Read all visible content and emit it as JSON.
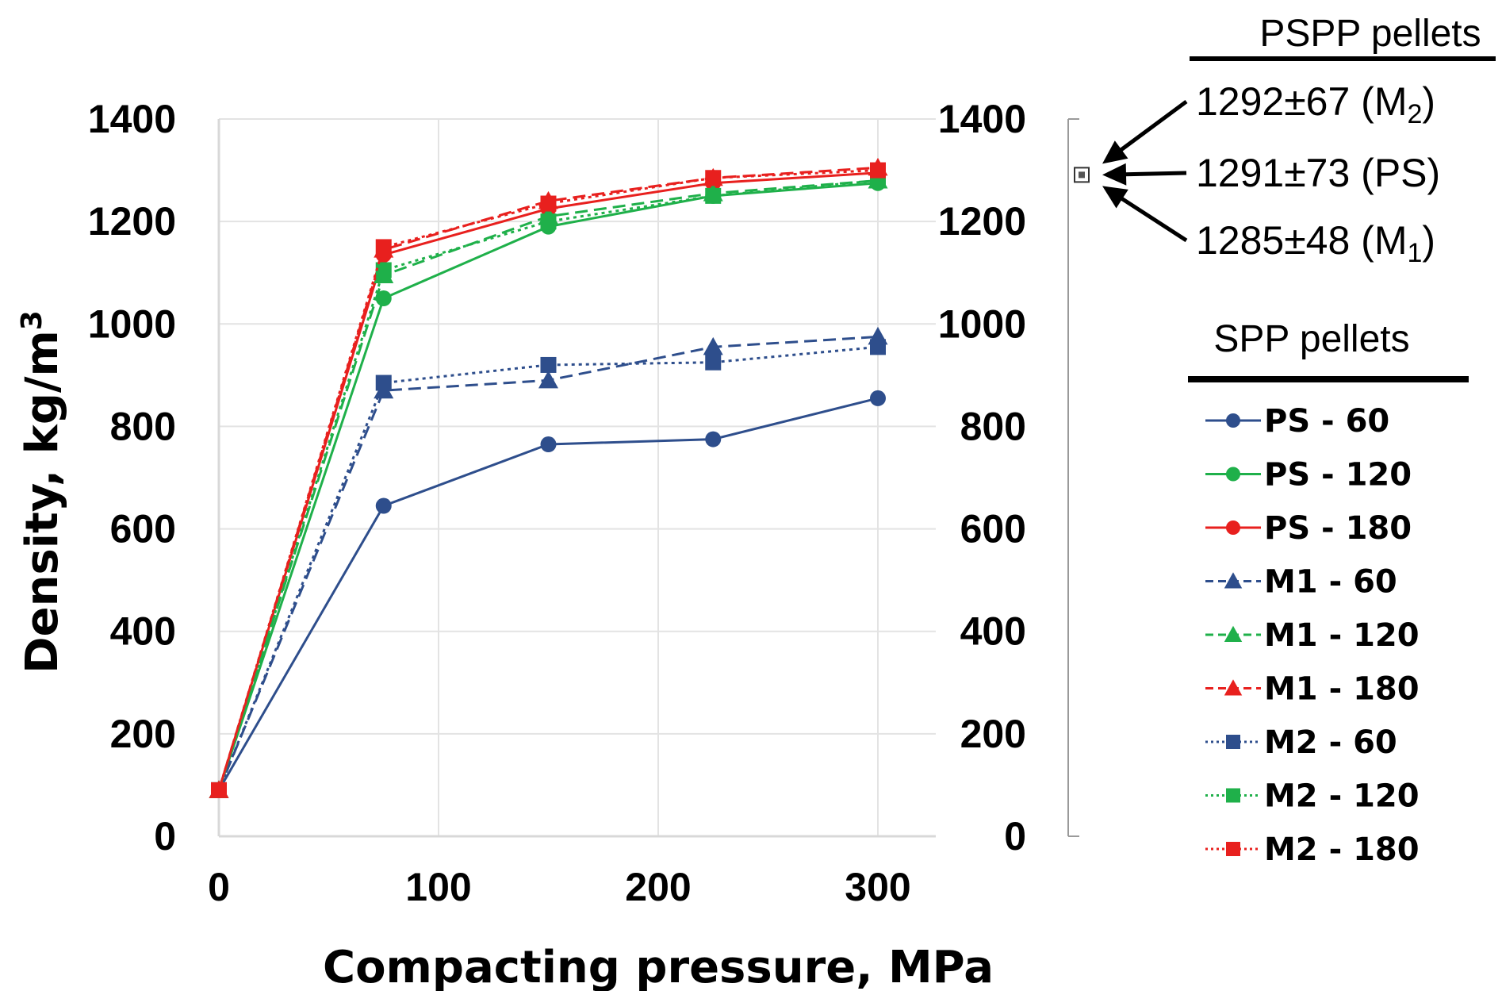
{
  "chart_data": {
    "type": "line",
    "xlabel": "Compacting pressure, MPa",
    "ylabel": "Density, kg/m",
    "ylabel_superscript": "3",
    "xlim": [
      0,
      330
    ],
    "ylim": [
      0,
      1400
    ],
    "x_ticks": [
      "0",
      "100",
      "200",
      "300"
    ],
    "y_ticks": [
      "0",
      "200",
      "400",
      "600",
      "800",
      "1000",
      "1200",
      "1400"
    ],
    "y2_ticks": [
      "0",
      "200",
      "400",
      "600",
      "800",
      "1000",
      "1200",
      "1400"
    ],
    "grid": true,
    "x": [
      0,
      75,
      150,
      225,
      300
    ],
    "legend_title": "SPP pellets",
    "legend_position": "right",
    "series": [
      {
        "name": "PS - 60",
        "color": "#2e4e8c",
        "marker": "circle",
        "dash": "solid",
        "values": [
          90,
          645,
          765,
          775,
          855
        ]
      },
      {
        "name": "PS - 120",
        "color": "#1fb04a",
        "marker": "circle",
        "dash": "solid",
        "values": [
          90,
          1050,
          1190,
          1250,
          1275
        ]
      },
      {
        "name": "PS - 180",
        "color": "#e8201e",
        "marker": "circle",
        "dash": "solid",
        "values": [
          90,
          1135,
          1225,
          1275,
          1295
        ]
      },
      {
        "name": "M1 - 60",
        "color": "#2e4e8c",
        "marker": "triangle",
        "dash": "dash",
        "values": [
          90,
          870,
          890,
          955,
          975
        ]
      },
      {
        "name": "M1  - 120",
        "color": "#1fb04a",
        "marker": "triangle",
        "dash": "dash",
        "values": [
          90,
          1095,
          1210,
          1255,
          1280
        ]
      },
      {
        "name": "M1 - 180",
        "color": "#e8201e",
        "marker": "triangle",
        "dash": "dash",
        "values": [
          90,
          1145,
          1240,
          1285,
          1305
        ]
      },
      {
        "name": "M2 - 60",
        "color": "#2e4e8c",
        "marker": "square",
        "dash": "dot",
        "values": [
          90,
          885,
          920,
          925,
          955
        ]
      },
      {
        "name": "M2 - 120",
        "color": "#1fb04a",
        "marker": "square",
        "dash": "dot",
        "values": [
          90,
          1105,
          1200,
          1250,
          1280
        ]
      },
      {
        "name": "M2 - 180",
        "color": "#e8201e",
        "marker": "square",
        "dash": "dot",
        "values": [
          90,
          1150,
          1235,
          1285,
          1300
        ]
      }
    ],
    "pspp": {
      "header": "PSPP pellets",
      "value": 1291,
      "annotations": [
        {
          "value": "1292±67",
          "label": "M",
          "sub": "2"
        },
        {
          "value": "1291±73",
          "label": "(PS)",
          "sub": ""
        },
        {
          "value": "1285±48",
          "label": "M",
          "sub": "1"
        }
      ]
    }
  }
}
